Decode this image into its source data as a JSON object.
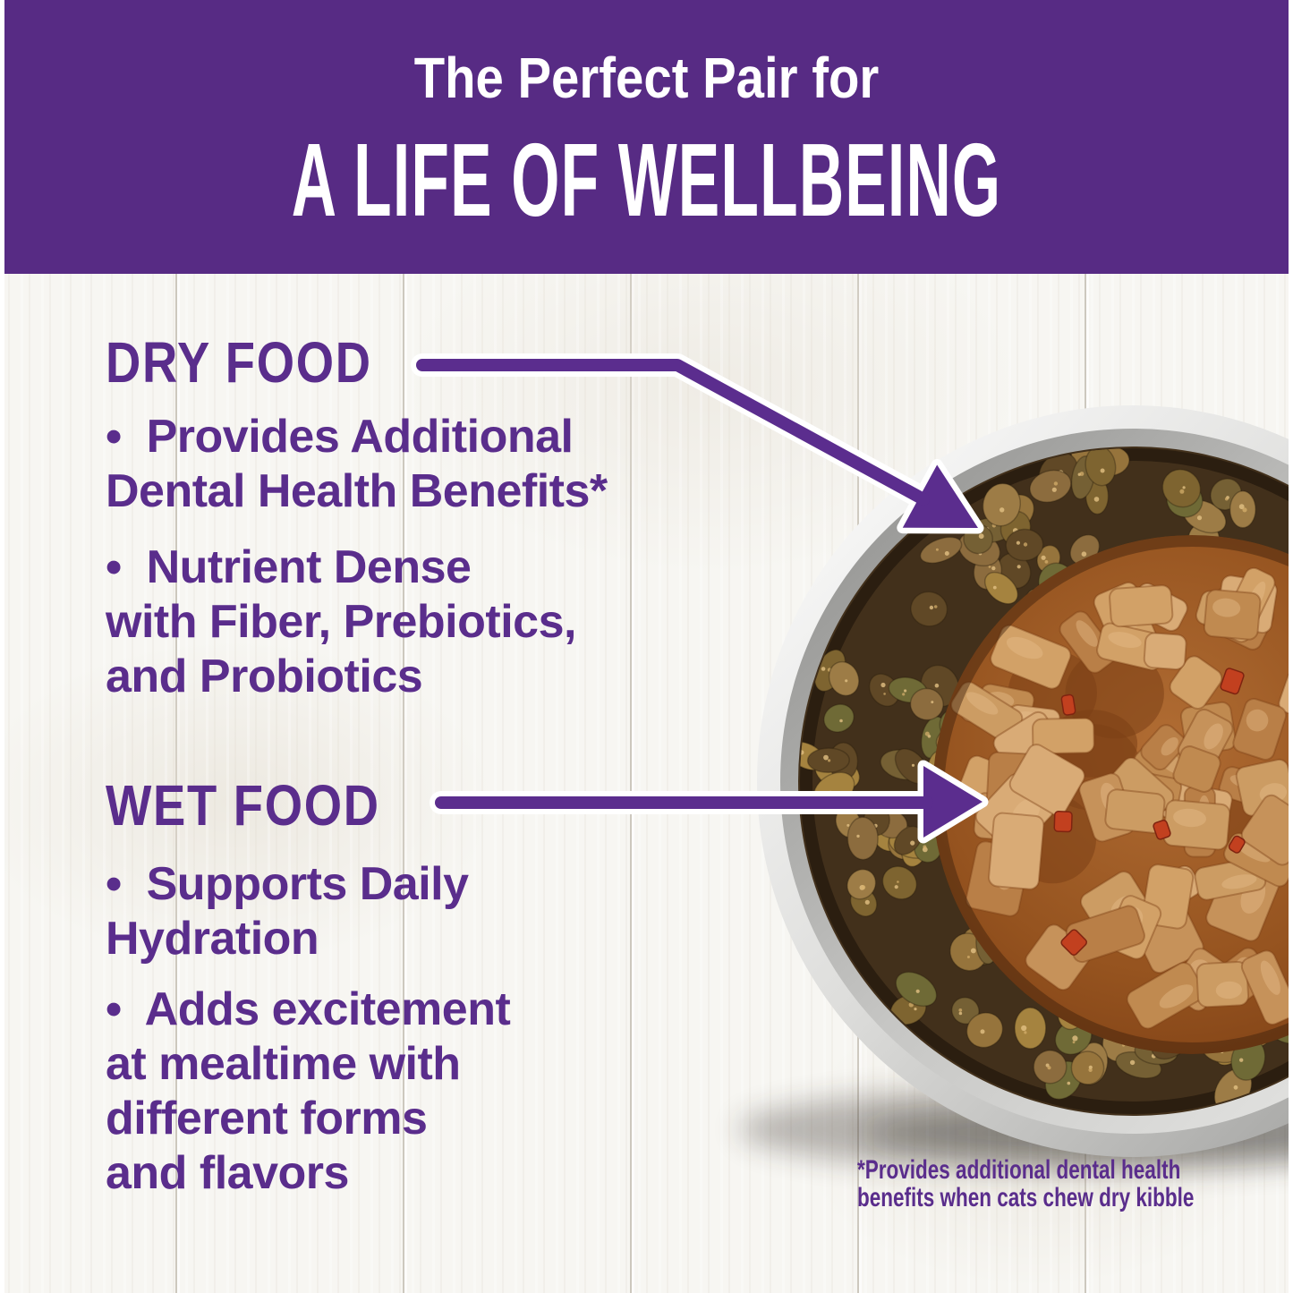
{
  "banner": {
    "line1": "The Perfect Pair for",
    "line2": "A LIFE OF WELLBEING"
  },
  "dry": {
    "heading": "DRY FOOD",
    "bullet1": "•  Provides Additional\nDental Health Benefits*",
    "bullet2": "•  Nutrient Dense\nwith Fiber, Prebiotics,\nand Probiotics"
  },
  "wet": {
    "heading": "WET FOOD",
    "bullet1": "•  Supports Daily\nHydration",
    "bullet2": "•  Adds excitement\nat mealtime with\ndifferent forms\nand flavors"
  },
  "footnote": "*Provides additional dental health\nbenefits when cats chew dry kibble",
  "colors": {
    "banner_purple": "#572b84",
    "text_purple": "#5a2d8c",
    "arrow_purple": "#5b2d8e",
    "background_wood": "#f7f6f2",
    "bowl_steel_light": "#f4f4f2",
    "bowl_steel_dark": "#9a9a98",
    "kibble_brown": "#8a6a3c",
    "gravy_brown": "#95531f",
    "chunk_tan": "#cd9a62",
    "pepper_red": "#c2401f"
  }
}
